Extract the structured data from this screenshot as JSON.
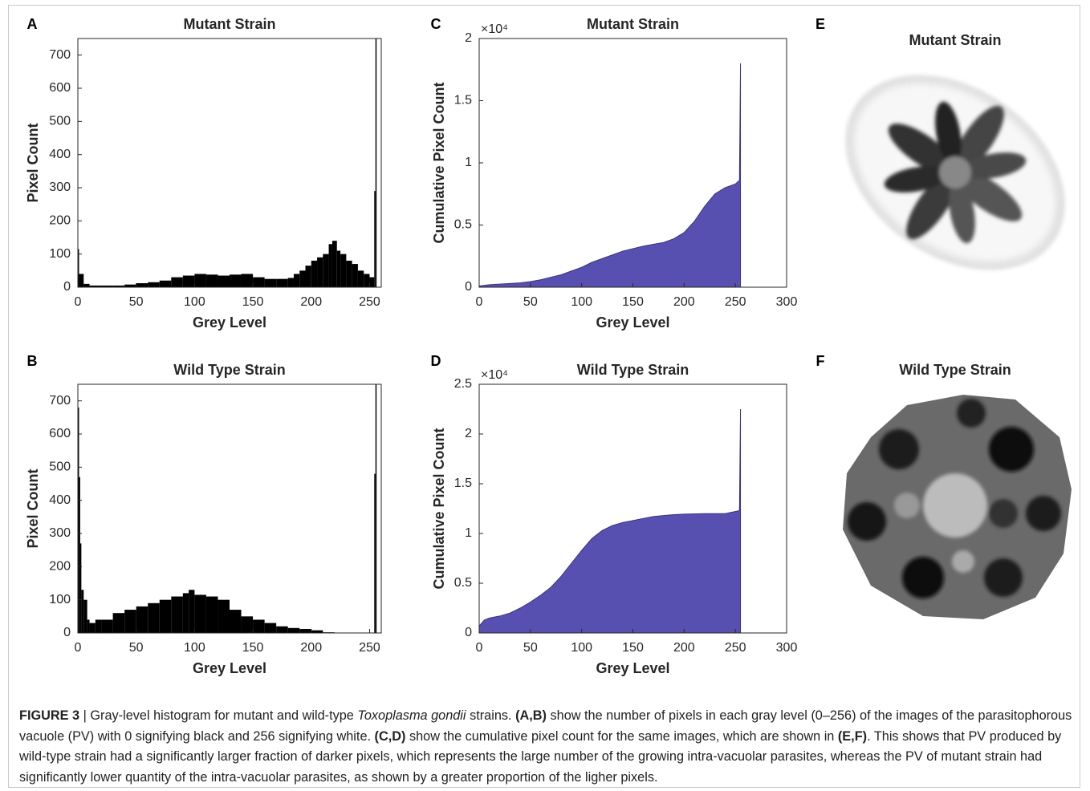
{
  "chart_data": [
    {
      "type": "bar",
      "panel_label": "A",
      "title": "Mutant Strain",
      "x_label": "Grey Level",
      "y_label": "Pixel Count",
      "color": "#000000",
      "x": [
        0,
        1,
        5,
        10,
        20,
        30,
        40,
        50,
        60,
        70,
        80,
        90,
        100,
        110,
        120,
        130,
        140,
        150,
        160,
        170,
        180,
        185,
        190,
        195,
        200,
        205,
        210,
        215,
        218,
        222,
        225,
        230,
        235,
        240,
        245,
        250,
        254,
        255
      ],
      "values": [
        115,
        40,
        10,
        5,
        5,
        5,
        8,
        12,
        15,
        20,
        30,
        35,
        40,
        38,
        35,
        38,
        40,
        30,
        25,
        25,
        28,
        40,
        50,
        65,
        80,
        90,
        100,
        130,
        140,
        110,
        100,
        80,
        70,
        50,
        40,
        30,
        290,
        750
      ],
      "xlim": [
        0,
        260
      ],
      "xticks": [
        0,
        50,
        100,
        150,
        200,
        250
      ],
      "ylim": [
        0,
        750
      ],
      "yticks": [
        0,
        100,
        200,
        300,
        400,
        500,
        600,
        700
      ]
    },
    {
      "type": "bar",
      "panel_label": "B",
      "title": "Wild Type Strain",
      "x_label": "Grey Level",
      "y_label": "Pixel Count",
      "color": "#000000",
      "x": [
        0,
        1,
        2,
        3,
        5,
        8,
        10,
        15,
        20,
        30,
        40,
        50,
        60,
        70,
        80,
        90,
        95,
        100,
        110,
        120,
        130,
        140,
        150,
        160,
        170,
        180,
        190,
        200,
        210,
        220,
        254,
        255
      ],
      "values": [
        680,
        470,
        270,
        130,
        100,
        40,
        30,
        40,
        40,
        60,
        70,
        80,
        90,
        100,
        110,
        120,
        130,
        115,
        110,
        100,
        70,
        50,
        40,
        30,
        20,
        15,
        12,
        8,
        2,
        1,
        480,
        750
      ],
      "xlim": [
        0,
        260
      ],
      "xticks": [
        0,
        50,
        100,
        150,
        200,
        250
      ],
      "ylim": [
        0,
        750
      ],
      "yticks": [
        0,
        100,
        200,
        300,
        400,
        500,
        600,
        700
      ]
    },
    {
      "type": "area",
      "panel_label": "C",
      "title": "Mutant Strain",
      "x_label": "Grey Level",
      "y_label": "Cumulative Pixel Count",
      "y_exponent": "×10⁴",
      "color": "#5850b0",
      "x": [
        0,
        10,
        20,
        30,
        40,
        50,
        60,
        70,
        80,
        90,
        100,
        110,
        120,
        130,
        140,
        150,
        160,
        170,
        180,
        190,
        200,
        210,
        220,
        230,
        240,
        250,
        254,
        255
      ],
      "values": [
        100,
        200,
        250,
        300,
        350,
        450,
        600,
        800,
        1000,
        1300,
        1600,
        2000,
        2300,
        2600,
        2900,
        3100,
        3300,
        3450,
        3600,
        3900,
        4400,
        5300,
        6500,
        7500,
        8000,
        8300,
        8600,
        18000
      ],
      "xlim": [
        0,
        300
      ],
      "xticks": [
        0,
        50,
        100,
        150,
        200,
        250,
        300
      ],
      "ylim": [
        0,
        20000
      ],
      "yticks": [
        0,
        {
          "value": 5000,
          "label": "0.5"
        },
        {
          "value": 10000,
          "label": "1"
        },
        {
          "value": 15000,
          "label": "1.5"
        },
        {
          "value": 20000,
          "label": "2"
        }
      ]
    },
    {
      "type": "area",
      "panel_label": "D",
      "title": "Wild Type Strain",
      "x_label": "Grey Level",
      "y_label": "Cumulative Pixel Count",
      "y_exponent": "×10⁴",
      "color": "#5850b0",
      "x": [
        0,
        5,
        10,
        20,
        30,
        40,
        50,
        60,
        70,
        80,
        90,
        100,
        110,
        120,
        130,
        140,
        150,
        160,
        170,
        180,
        190,
        200,
        220,
        240,
        254,
        255
      ],
      "values": [
        700,
        1300,
        1500,
        1700,
        2000,
        2500,
        3100,
        3800,
        4600,
        5700,
        7000,
        8300,
        9500,
        10300,
        10800,
        11100,
        11300,
        11500,
        11700,
        11800,
        11900,
        11950,
        12000,
        12000,
        12300,
        22500
      ],
      "xlim": [
        0,
        300
      ],
      "xticks": [
        0,
        50,
        100,
        150,
        200,
        250,
        300
      ],
      "ylim": [
        0,
        25000
      ],
      "yticks": [
        0,
        {
          "value": 5000,
          "label": "0.5"
        },
        {
          "value": 10000,
          "label": "1"
        },
        {
          "value": 15000,
          "label": "1.5"
        },
        {
          "value": 20000,
          "label": "2"
        },
        {
          "value": 25000,
          "label": "2.5"
        }
      ]
    }
  ],
  "images": [
    {
      "panel_label": "E",
      "title": "Mutant Strain"
    },
    {
      "panel_label": "F",
      "title": "Wild Type Strain"
    }
  ],
  "caption": [
    "FIGURE 3",
    " | Gray-level histogram for mutant and wild-type ",
    "Toxoplasma gondii",
    " strains. ",
    "(A,B)",
    " show the number of pixels in each gray level (0–256) of the images of the parasitophorous vacuole (PV) with 0 signifying black and 256 signifying white. ",
    "(C,D)",
    " show the cumulative pixel count for the same images, which are shown in ",
    "(E,F)",
    ". This shows that PV produced by wild-type strain had a significantly larger fraction of darker pixels, which represents the large number of the growing intra-vacuolar parasites, whereas the PV of mutant strain had significantly lower quantity of the intra-vacuolar parasites, as shown by a greater proportion of the ligher pixels."
  ]
}
